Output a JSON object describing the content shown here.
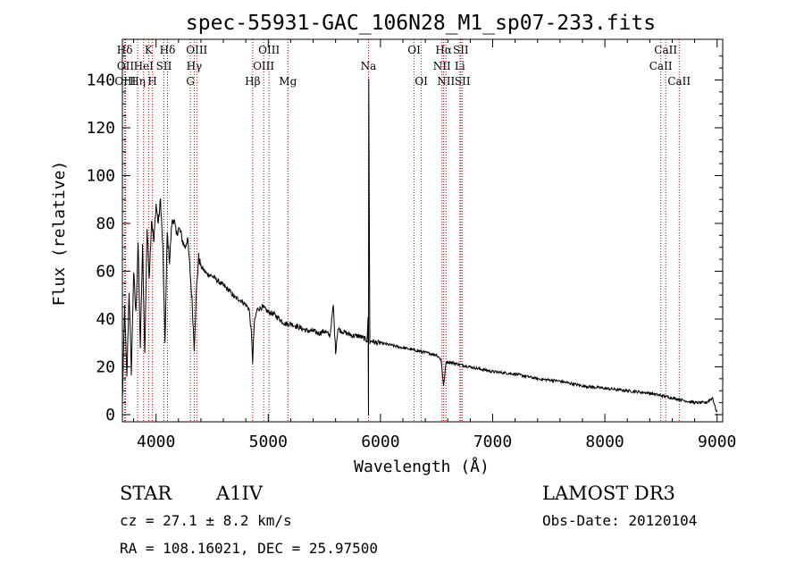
{
  "chart_data": {
    "type": "line",
    "title": "spec-55931-GAC_106N28_M1_sp07-233.fits",
    "xlabel": "Wavelength (Å)",
    "ylabel": "Flux (relative)",
    "xlim": [
      3700,
      9050
    ],
    "ylim": [
      -3,
      157
    ],
    "x_ticks": [
      4000,
      5000,
      6000,
      7000,
      8000,
      9000
    ],
    "y_ticks": [
      0,
      20,
      40,
      60,
      80,
      100,
      120,
      140
    ],
    "spectral_lines": [
      {
        "label": "Hδ",
        "wavelength": 3721,
        "row": 0
      },
      {
        "label": "OII",
        "wavelength": 3728,
        "row": 1
      },
      {
        "label": "OIII",
        "wavelength": 3727,
        "row": 2
      },
      {
        "label": "K",
        "wavelength": 3934,
        "row": 0
      },
      {
        "label": "HeI",
        "wavelength": 3889,
        "row": 1
      },
      {
        "label": "Hη",
        "wavelength": 3836,
        "row": 2
      },
      {
        "label": "SII",
        "wavelength": 4070,
        "row": 1
      },
      {
        "label": "H",
        "wavelength": 3968,
        "row": 2
      },
      {
        "label": "Hδ",
        "wavelength": 4102,
        "row": 0
      },
      {
        "label": "OIII",
        "wavelength": 4363,
        "row": 0
      },
      {
        "label": "Hγ",
        "wavelength": 4340,
        "row": 1
      },
      {
        "label": "G",
        "wavelength": 4306,
        "row": 2
      },
      {
        "label": "OIII",
        "wavelength": 5007,
        "row": 0
      },
      {
        "label": "OIII",
        "wavelength": 4959,
        "row": 1
      },
      {
        "label": "Hβ",
        "wavelength": 4861,
        "row": 2
      },
      {
        "label": "Mg",
        "wavelength": 5175,
        "row": 2
      },
      {
        "label": "Na",
        "wavelength": 5893,
        "row": 1
      },
      {
        "label": "OI",
        "wavelength": 6300,
        "row": 0
      },
      {
        "label": "OI",
        "wavelength": 6364,
        "row": 2
      },
      {
        "label": "Hα",
        "wavelength": 6563,
        "row": 0
      },
      {
        "label": "SII",
        "wavelength": 6716,
        "row": 0
      },
      {
        "label": "NII",
        "wavelength": 6548,
        "row": 1
      },
      {
        "label": "Li",
        "wavelength": 6708,
        "row": 1
      },
      {
        "label": "NII",
        "wavelength": 6584,
        "row": 2
      },
      {
        "label": "SII",
        "wavelength": 6731,
        "row": 2
      },
      {
        "label": "CaII",
        "wavelength": 8542,
        "row": 0
      },
      {
        "label": "CaII",
        "wavelength": 8498,
        "row": 1
      },
      {
        "label": "CaII",
        "wavelength": 8662,
        "row": 2
      }
    ],
    "series": [
      {
        "name": "flux",
        "x": [
          3700,
          3720,
          3740,
          3760,
          3780,
          3800,
          3820,
          3840,
          3860,
          3880,
          3900,
          3920,
          3940,
          3960,
          3980,
          4000,
          4020,
          4040,
          4060,
          4080,
          4100,
          4120,
          4140,
          4160,
          4180,
          4200,
          4220,
          4240,
          4260,
          4280,
          4300,
          4320,
          4340,
          4360,
          4380,
          4400,
          4450,
          4500,
          4550,
          4600,
          4650,
          4700,
          4750,
          4800,
          4830,
          4850,
          4861,
          4875,
          4900,
          4950,
          5000,
          5050,
          5100,
          5150,
          5200,
          5250,
          5300,
          5350,
          5400,
          5450,
          5500,
          5550,
          5580,
          5600,
          5620,
          5650,
          5700,
          5750,
          5800,
          5850,
          5880,
          5889,
          5893,
          5896,
          5905,
          5920,
          5960,
          6000,
          6100,
          6200,
          6300,
          6400,
          6500,
          6540,
          6563,
          6585,
          6620,
          6700,
          6800,
          6900,
          7000,
          7200,
          7400,
          7600,
          7800,
          8000,
          8200,
          8400,
          8600,
          8800,
          8900,
          8960,
          8990,
          9000
        ],
        "y": [
          5,
          45,
          15,
          52,
          18,
          60,
          42,
          72,
          28,
          70,
          25,
          78,
          58,
          82,
          72,
          88,
          80,
          90,
          70,
          30,
          76,
          64,
          80,
          82,
          75,
          78,
          76,
          72,
          70,
          74,
          62,
          48,
          28,
          52,
          66,
          62,
          59,
          58,
          56,
          54,
          52,
          49,
          48,
          46,
          44,
          34,
          22,
          38,
          44,
          45,
          43,
          42,
          40,
          38,
          38,
          37,
          36,
          35,
          35,
          34,
          35,
          33,
          46,
          26,
          36,
          35,
          34,
          33,
          33,
          32,
          31,
          40,
          0,
          140,
          30,
          31,
          30,
          30,
          29,
          28,
          27,
          26,
          25,
          23,
          12,
          22,
          22,
          21,
          20,
          19,
          18,
          17,
          15,
          14,
          12,
          11,
          10,
          9,
          7,
          5,
          5,
          7,
          2,
          1
        ]
      }
    ]
  },
  "info": {
    "object_class": "STAR",
    "subclass": "A1IV",
    "survey": "LAMOST DR3",
    "redshift": "cz = 27.1 ± 8.2 km/s",
    "obs_date": "Obs-Date: 20120104",
    "coords": "RA = 108.16021, DEC =  25.97500"
  }
}
